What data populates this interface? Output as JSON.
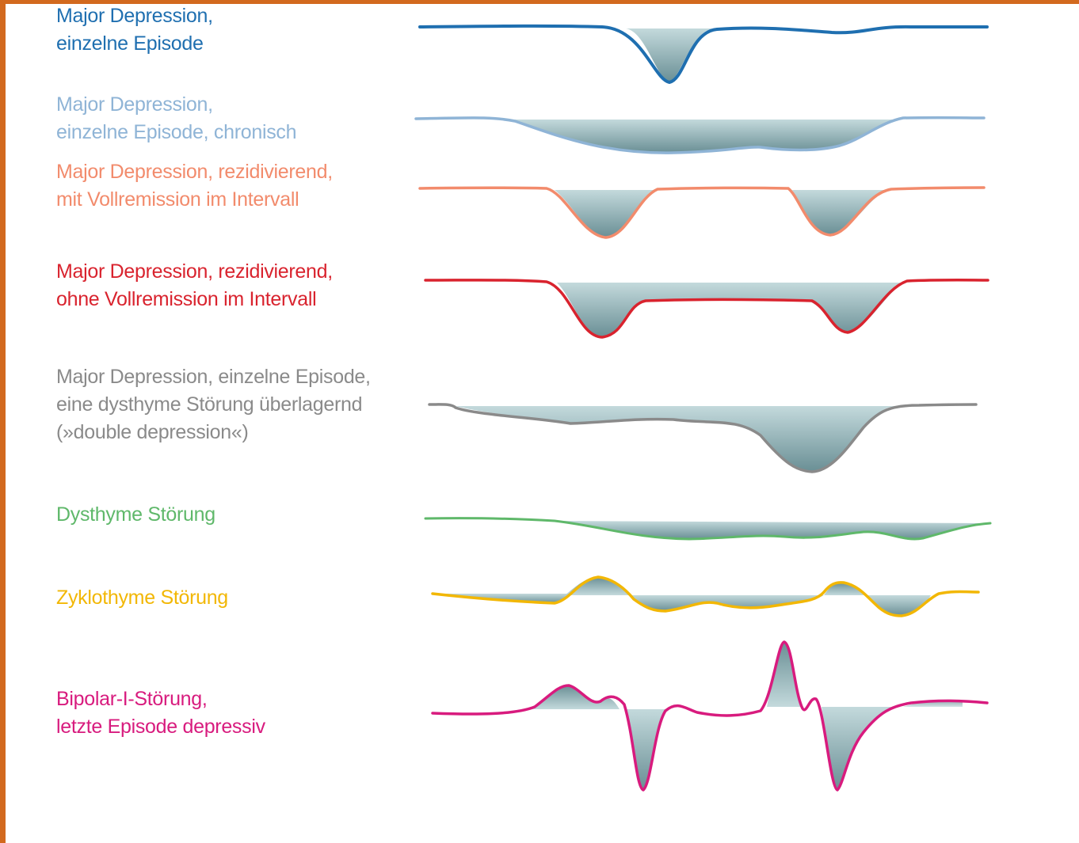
{
  "rows": [
    {
      "id": "md-single",
      "lines": [
        "Major Depression,",
        "einzelne Episode"
      ],
      "color": "#1f6fb0"
    },
    {
      "id": "md-chronic",
      "lines": [
        "Major Depression,",
        "einzelne Episode, chronisch"
      ],
      "color": "#8fb4d6"
    },
    {
      "id": "md-recurrent-full",
      "lines": [
        "Major Depression, rezidivierend,",
        "mit Vollremission im Intervall"
      ],
      "color": "#f28b6c"
    },
    {
      "id": "md-recurrent-partial",
      "lines": [
        "Major Depression, rezidivierend,",
        "ohne Vollremission im Intervall"
      ],
      "color": "#d9232e"
    },
    {
      "id": "double-depression",
      "lines": [
        "Major Depression, einzelne Episode,",
        "eine dysthyme Störung überlagernd",
        "(»double depression«)"
      ],
      "color": "#8a8a8a"
    },
    {
      "id": "dysthymia",
      "lines": [
        "Dysthyme Störung"
      ],
      "color": "#5fb86a"
    },
    {
      "id": "cyclothymia",
      "lines": [
        "Zyklothyme Störung"
      ],
      "color": "#f2b705"
    },
    {
      "id": "bipolar-1",
      "lines": [
        "Bipolar-I-Störung,",
        "letzte Episode depressiv"
      ],
      "color": "#d81b7e"
    }
  ],
  "fill_color": "#6f9aa3",
  "frame_color": "#d2691e"
}
